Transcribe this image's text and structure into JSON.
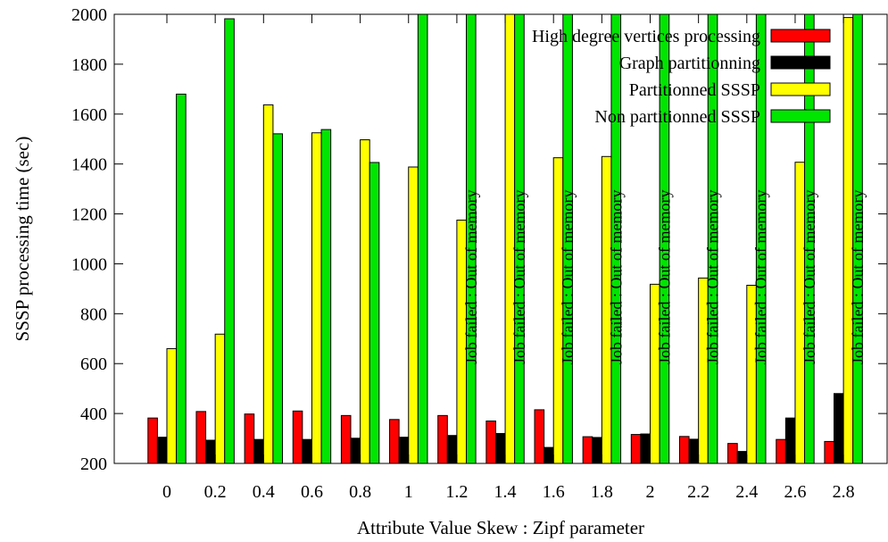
{
  "chart_data": {
    "type": "bar",
    "xlabel": "Attribute Value Skew : Zipf parameter",
    "ylabel": "SSSP processing time (sec)",
    "ylim": [
      200,
      2000
    ],
    "yticks": [
      200,
      400,
      600,
      800,
      1000,
      1200,
      1400,
      1600,
      1800,
      2000
    ],
    "categories": [
      "0",
      "0.2",
      "0.4",
      "0.6",
      "0.8",
      "1",
      "1.2",
      "1.4",
      "1.6",
      "1.8",
      "2",
      "2.2",
      "2.4",
      "2.6",
      "2.8"
    ],
    "legend_position": "top-right",
    "grid": false,
    "series": [
      {
        "name": "High degree vertices processing",
        "color": "#ff0000",
        "values": [
          382,
          408,
          398,
          410,
          392,
          376,
          392,
          370,
          415,
          307,
          316,
          308,
          280,
          296,
          288
        ]
      },
      {
        "name": "Graph partitionning",
        "color": "#000000",
        "values": [
          305,
          293,
          296,
          296,
          301,
          305,
          312,
          320,
          264,
          304,
          318,
          297,
          248,
          382,
          480
        ]
      },
      {
        "name": "Partitionned SSSP",
        "color": "#ffff00",
        "values": [
          660,
          718,
          1637,
          1525,
          1497,
          1388,
          1175,
          2000,
          1425,
          1430,
          918,
          943,
          914,
          1407,
          1987
        ]
      },
      {
        "name": "Non partitionned SSSP",
        "color": "#00e600",
        "values": [
          1680,
          1982,
          1521,
          1538,
          1406,
          2000,
          2000,
          2000,
          2000,
          2000,
          2000,
          2000,
          2000,
          2000,
          2000
        ]
      }
    ],
    "annotations": [
      {
        "category": "1.2",
        "text": "Job failed : Out of memory"
      },
      {
        "category": "1.4",
        "text": "Job failed : Out of memory"
      },
      {
        "category": "1.6",
        "text": "Job failed : Out of memory"
      },
      {
        "category": "1.8",
        "text": "Job failed : Out of memory"
      },
      {
        "category": "2",
        "text": "Job failed : Out of memory"
      },
      {
        "category": "2.2",
        "text": "Job failed : Out of memory"
      },
      {
        "category": "2.4",
        "text": "Job failed : Out of memory"
      },
      {
        "category": "2.6",
        "text": "Job failed : Out of memory"
      },
      {
        "category": "2.8",
        "text": "Job failed : Out of memory"
      }
    ]
  }
}
